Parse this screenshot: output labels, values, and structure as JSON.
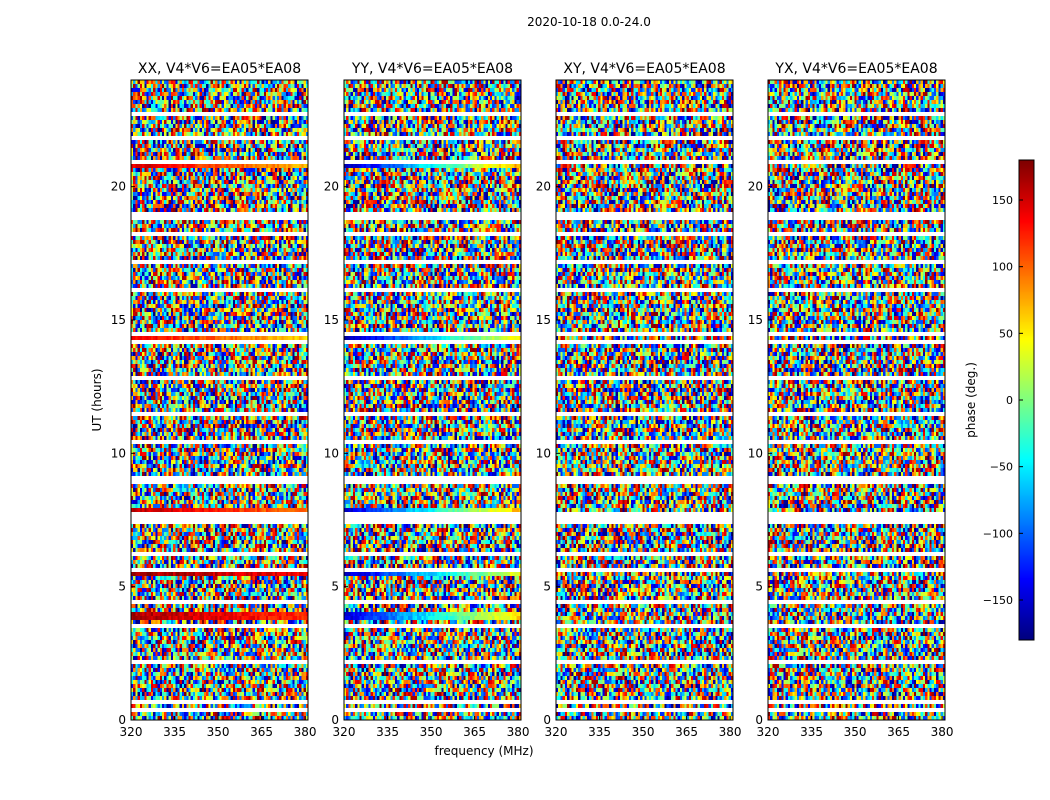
{
  "chart_data": {
    "type": "heatmap",
    "suptitle": "2020-10-18 0.0-24.0",
    "xlabel": "frequency (MHz)",
    "ylabel": "UT (hours)",
    "xlim": [
      320,
      381
    ],
    "ylim": [
      0,
      24
    ],
    "xticks": [
      320,
      335,
      350,
      365,
      380
    ],
    "yticks": [
      0,
      5,
      10,
      15,
      20
    ],
    "colorbar": {
      "label": "phase (deg.)",
      "range": [
        -180,
        180
      ],
      "ticks": [
        150,
        100,
        50,
        0,
        -50,
        -100,
        -150
      ],
      "colormap": "jet"
    },
    "flagged_rows_ut": [
      0.35,
      0.7,
      2.15,
      3.5,
      4.4,
      5.6,
      6.2,
      7.5,
      7.75,
      9.0,
      10.4,
      11.5,
      12.8,
      14.2,
      14.5,
      16.1,
      17.2,
      18.2,
      18.9,
      20.9,
      21.8,
      22.7
    ],
    "panels": [
      {
        "title": "XX, V4*V6=EA05*EA08",
        "coherent_bands": [
          {
            "ut_start": 3.8,
            "ut_end": 4.05,
            "phase_low_freq": 165,
            "phase_high_freq": 120
          },
          {
            "ut_start": 5.35,
            "ut_end": 5.6,
            "phase_low_freq": 170,
            "phase_high_freq": 140
          },
          {
            "ut_start": 7.65,
            "ut_end": 7.9,
            "phase_low_freq": 160,
            "phase_high_freq": 90
          },
          {
            "ut_start": 20.7,
            "ut_end": 21.0,
            "phase_low_freq": 150,
            "phase_high_freq": 70
          },
          {
            "ut_start": 14.3,
            "ut_end": 14.6,
            "phase_low_freq": 140,
            "phase_high_freq": 60
          }
        ]
      },
      {
        "title": "YY, V4*V6=EA05*EA08",
        "coherent_bands": [
          {
            "ut_start": 3.8,
            "ut_end": 4.05,
            "phase_low_freq": -150,
            "phase_high_freq": 60
          },
          {
            "ut_start": 5.35,
            "ut_end": 5.6,
            "phase_low_freq": -160,
            "phase_high_freq": 40
          },
          {
            "ut_start": 7.65,
            "ut_end": 7.9,
            "phase_low_freq": -155,
            "phase_high_freq": 70
          },
          {
            "ut_start": 20.7,
            "ut_end": 21.0,
            "phase_low_freq": -165,
            "phase_high_freq": 80
          },
          {
            "ut_start": 14.3,
            "ut_end": 14.6,
            "phase_low_freq": -170,
            "phase_high_freq": 50
          }
        ]
      },
      {
        "title": "XY, V4*V6=EA05*EA08",
        "coherent_bands": []
      },
      {
        "title": "YX, V4*V6=EA05*EA08",
        "coherent_bands": []
      }
    ]
  }
}
